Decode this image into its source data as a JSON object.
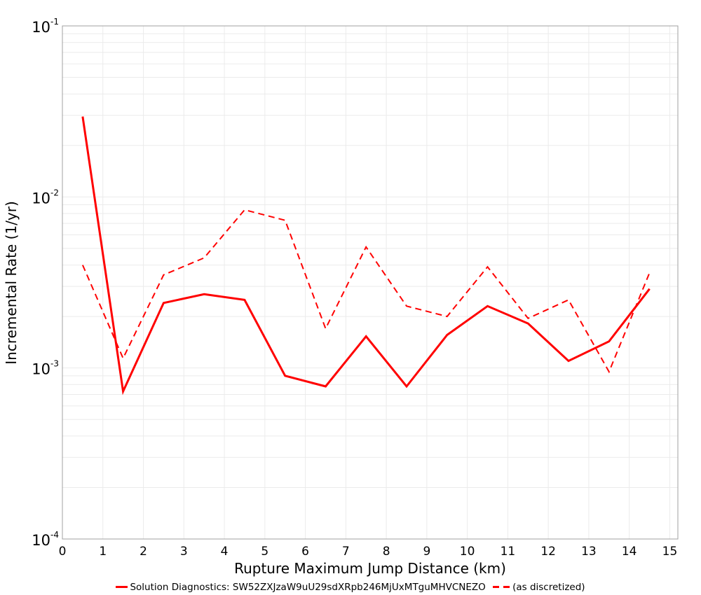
{
  "chart_data": {
    "type": "line",
    "title": "",
    "xlabel": "Rupture Maximum Jump Distance (km)",
    "ylabel": "Incremental Rate (1/yr)",
    "xlim": [
      0,
      15.2
    ],
    "ylim": [
      0.0001,
      0.1
    ],
    "yscale": "log",
    "grid": true,
    "legend_position": "bottom",
    "x_ticks": [
      0,
      1,
      2,
      3,
      4,
      5,
      6,
      7,
      8,
      9,
      10,
      11,
      12,
      13,
      14,
      15
    ],
    "y_ticks": [
      {
        "base": "10",
        "exp": "-1",
        "value": 0.1
      },
      {
        "base": "10",
        "exp": "-2",
        "value": 0.01
      },
      {
        "base": "10",
        "exp": "-3",
        "value": 0.001
      },
      {
        "base": "10",
        "exp": "-4",
        "value": 0.0001
      }
    ],
    "x": [
      0.5,
      1.5,
      2.5,
      3.5,
      4.5,
      5.5,
      6.5,
      7.5,
      8.5,
      9.5,
      10.5,
      11.5,
      12.5,
      13.5,
      14.5
    ],
    "series": [
      {
        "name": "Solution Diagnostics: SW52ZXJzaW9uU29sdXRpb246MjUxMTguMHVCNEZO",
        "style": "solid",
        "color": "#ff0000",
        "values": [
          0.0295,
          0.00073,
          0.0024,
          0.0027,
          0.0025,
          0.0009,
          0.00078,
          0.00153,
          0.00078,
          0.00156,
          0.0023,
          0.00182,
          0.0011,
          0.00143,
          0.0029
        ]
      },
      {
        "name": "(as discretized)",
        "style": "dashed",
        "color": "#ff0000",
        "values": [
          0.004,
          0.00114,
          0.0035,
          0.0044,
          0.0084,
          0.0073,
          0.0017,
          0.0051,
          0.0023,
          0.002,
          0.0039,
          0.00195,
          0.0025,
          0.00095,
          0.0036
        ]
      }
    ]
  },
  "legend": {
    "solid_label": "Solution Diagnostics: SW52ZXJzaW9uU29sdXRpb246MjUxMTguMHVCNEZO",
    "dashed_label": "(as discretized)"
  },
  "axes": {
    "xlabel": "Rupture Maximum Jump Distance (km)",
    "ylabel": "Incremental Rate (1/yr)"
  }
}
